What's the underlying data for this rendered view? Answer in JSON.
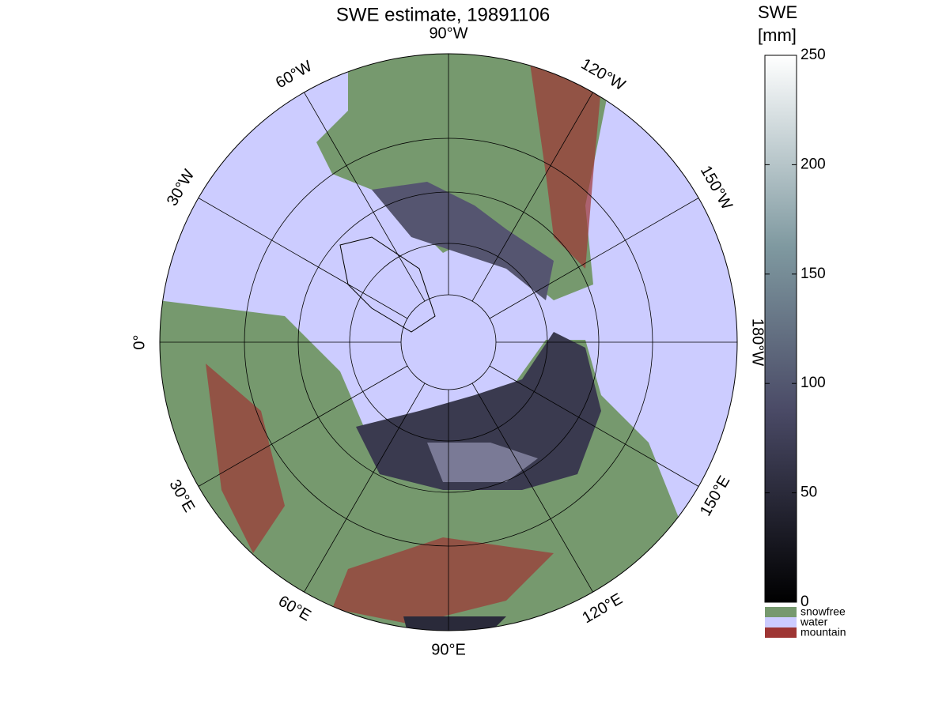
{
  "title": "SWE estimate, 19891106",
  "longitude_labels": [
    "90°W",
    "120°W",
    "150°W",
    "180°W",
    "150°E",
    "120°E",
    "90°E",
    "60°E",
    "30°E",
    "0°",
    "30°W",
    "60°W"
  ],
  "colorbar": {
    "title": [
      "SWE",
      "[mm]"
    ],
    "lim": [
      0,
      250
    ],
    "ticks": [
      0,
      50,
      100,
      150,
      200,
      250
    ]
  },
  "legend": [
    {
      "label": "snowfree",
      "color": "#76996e"
    },
    {
      "label": "water",
      "color": "#ccccff"
    },
    {
      "label": "mountain",
      "color": "#9e3533"
    }
  ]
}
